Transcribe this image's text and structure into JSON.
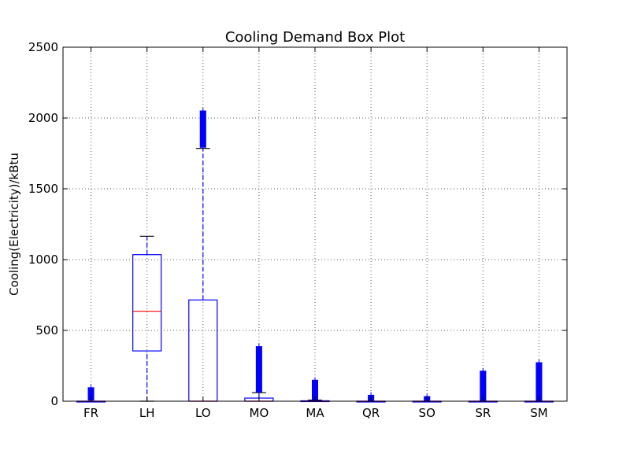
{
  "chart_data": {
    "type": "box",
    "title": "Cooling Demand Box Plot",
    "xlabel": "",
    "ylabel": "Cooling(Electricity)/kBtu",
    "ylim": [
      0,
      2500
    ],
    "yticks": [
      0,
      500,
      1000,
      1500,
      2000,
      2500
    ],
    "grid": true,
    "legend": "none",
    "categories": [
      "FR",
      "LH",
      "LO",
      "MO",
      "MA",
      "QR",
      "SO",
      "SR",
      "SM"
    ],
    "boxes": [
      {
        "category": "FR",
        "whisker_low": 0,
        "q1": 0,
        "median": 0,
        "q3": 0,
        "whisker_high": 0,
        "outliers_min": 5,
        "outliers_max": 95
      },
      {
        "category": "LH",
        "whisker_low": 0,
        "q1": 355,
        "median": 635,
        "q3": 1035,
        "whisker_high": 1165,
        "outliers_min": null,
        "outliers_max": null
      },
      {
        "category": "LO",
        "whisker_low": 0,
        "q1": 0,
        "median": 0,
        "q3": 715,
        "whisker_high": 1785,
        "outliers_min": 1790,
        "outliers_max": 2050
      },
      {
        "category": "MO",
        "whisker_low": 0,
        "q1": 0,
        "median": 0,
        "q3": 22,
        "whisker_high": 60,
        "outliers_min": 62,
        "outliers_max": 385
      },
      {
        "category": "MA",
        "whisker_low": 0,
        "q1": 0,
        "median": 0,
        "q3": 3,
        "whisker_high": 8,
        "outliers_min": 9,
        "outliers_max": 148
      },
      {
        "category": "QR",
        "whisker_low": 0,
        "q1": 0,
        "median": 0,
        "q3": 0,
        "whisker_high": 0,
        "outliers_min": 2,
        "outliers_max": 42
      },
      {
        "category": "SO",
        "whisker_low": 0,
        "q1": 0,
        "median": 0,
        "q3": 0,
        "whisker_high": 0,
        "outliers_min": 2,
        "outliers_max": 32
      },
      {
        "category": "SR",
        "whisker_low": 0,
        "q1": 0,
        "median": 0,
        "q3": 0,
        "whisker_high": 0,
        "outliers_min": 2,
        "outliers_max": 212
      },
      {
        "category": "SM",
        "whisker_low": 0,
        "q1": 0,
        "median": 0,
        "q3": 0,
        "whisker_high": 0,
        "outliers_min": 2,
        "outliers_max": 272
      }
    ],
    "colors": {
      "box": "#0000ff",
      "median": "#ff0000",
      "outlier": "#0000ff",
      "grid": "#555555",
      "axes": "#000000"
    }
  }
}
